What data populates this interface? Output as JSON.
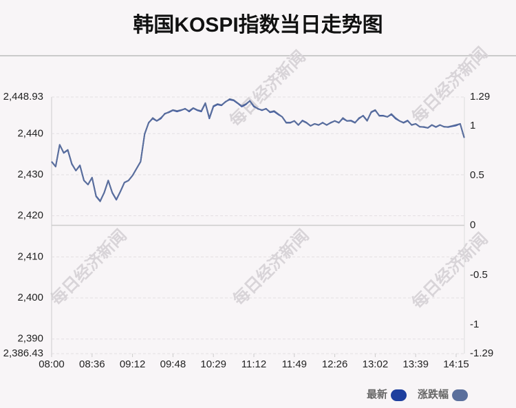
{
  "chart_data": {
    "type": "line",
    "title": "韩国KOSPI指数当日走势图",
    "watermark": "每日经济新闻",
    "categories": [
      "08:00",
      null,
      null,
      null,
      null,
      null,
      null,
      null,
      null,
      null,
      "08:36",
      null,
      null,
      null,
      null,
      null,
      null,
      null,
      null,
      null,
      "09:12",
      null,
      null,
      null,
      null,
      null,
      null,
      null,
      null,
      null,
      "09:48",
      null,
      null,
      null,
      null,
      null,
      null,
      null,
      null,
      null,
      "10:29",
      null,
      null,
      null,
      null,
      null,
      null,
      null,
      null,
      null,
      "11:12",
      null,
      null,
      null,
      null,
      null,
      null,
      null,
      null,
      null,
      "11:49",
      null,
      null,
      null,
      null,
      null,
      null,
      null,
      null,
      null,
      "12:26",
      null,
      null,
      null,
      null,
      null,
      null,
      null,
      null,
      null,
      "13:02",
      null,
      null,
      null,
      null,
      null,
      null,
      null,
      null,
      null,
      "13:39",
      null,
      null,
      null,
      null,
      null,
      null,
      null,
      null,
      null,
      "14:15",
      null,
      null
    ],
    "series": [
      {
        "name": "最新",
        "color": "#1e3f9e",
        "values": [
          2433.2,
          2432.0,
          2437.3,
          2435.3,
          2436.0,
          2432.6,
          2431.0,
          2432.3,
          2428.6,
          2427.6,
          2429.3,
          2424.8,
          2423.6,
          2425.6,
          2428.6,
          2425.6,
          2423.9,
          2425.9,
          2428.1,
          2428.6,
          2429.8,
          2431.5,
          2433.2,
          2439.9,
          2442.7,
          2443.7,
          2443.1,
          2443.7,
          2444.9,
          2445.2,
          2445.7,
          2445.4,
          2445.7,
          2446.1,
          2445.4,
          2446.2,
          2445.7,
          2445.4,
          2447.4,
          2443.7,
          2446.6,
          2447.1,
          2446.9,
          2447.8,
          2448.3,
          2448.1,
          2447.4,
          2446.6,
          2447.1,
          2448.0,
          2446.6,
          2446.1,
          2445.7,
          2446.1,
          2445.2,
          2445.4,
          2444.7,
          2444.1,
          2442.7,
          2442.7,
          2443.1,
          2442.1,
          2443.2,
          2442.7,
          2441.9,
          2442.4,
          2442.1,
          2442.7,
          2442.1,
          2442.7,
          2443.1,
          2442.7,
          2443.7,
          2443.1,
          2443.2,
          2442.7,
          2443.7,
          2444.4,
          2443.2,
          2445.2,
          2445.7,
          2444.4,
          2444.4,
          2444.1,
          2444.7,
          2443.7,
          2443.1,
          2442.7,
          2443.2,
          2442.1,
          2442.4,
          2441.7,
          2441.6,
          2441.4,
          2442.1,
          2441.6,
          2442.1,
          2441.7,
          2441.6,
          2441.8,
          2442.0,
          2442.4,
          2439.0
        ]
      },
      {
        "name": "涨跌幅",
        "color": "#5b6f9c",
        "axis": "y2",
        "values": [
          0.64,
          0.59,
          0.81,
          0.73,
          0.76,
          0.62,
          0.55,
          0.6,
          0.45,
          0.41,
          0.48,
          0.29,
          0.24,
          0.33,
          0.45,
          0.33,
          0.26,
          0.34,
          0.43,
          0.45,
          0.5,
          0.57,
          0.64,
          0.92,
          1.03,
          1.08,
          1.05,
          1.08,
          1.12,
          1.14,
          1.16,
          1.15,
          1.16,
          1.17,
          1.15,
          1.18,
          1.16,
          1.15,
          1.23,
          1.08,
          1.2,
          1.22,
          1.21,
          1.24,
          1.27,
          1.26,
          1.23,
          1.2,
          1.22,
          1.25,
          1.2,
          1.17,
          1.16,
          1.17,
          1.14,
          1.15,
          1.12,
          1.09,
          1.03,
          1.03,
          1.05,
          1.01,
          1.05,
          1.03,
          1.0,
          1.02,
          1.01,
          1.03,
          1.01,
          1.03,
          1.05,
          1.03,
          1.08,
          1.05,
          1.05,
          1.03,
          1.08,
          1.1,
          1.05,
          1.14,
          1.16,
          1.1,
          1.1,
          1.09,
          1.12,
          1.08,
          1.05,
          1.03,
          1.05,
          1.01,
          1.02,
          0.99,
          0.99,
          0.98,
          1.01,
          0.99,
          1.01,
          0.99,
          0.99,
          1.0,
          1.01,
          1.02,
          0.88
        ]
      }
    ],
    "ylim": [
      2386.43,
      2448.93
    ],
    "yticks": [
      {
        "value": 2448.93,
        "label": "2,448.93"
      },
      {
        "value": 2440,
        "label": "2,440"
      },
      {
        "value": 2430,
        "label": "2,430"
      },
      {
        "value": 2420,
        "label": "2,420"
      },
      {
        "value": 2410,
        "label": "2,410"
      },
      {
        "value": 2400,
        "label": "2,400"
      },
      {
        "value": 2390,
        "label": "2,390"
      },
      {
        "value": 2386.43,
        "label": "2,386.43"
      }
    ],
    "y2lim": [
      -1.29,
      1.29
    ],
    "y2ticks": [
      1.29,
      1,
      0.5,
      0,
      -0.5,
      -1,
      -1.29
    ],
    "grid": true
  }
}
